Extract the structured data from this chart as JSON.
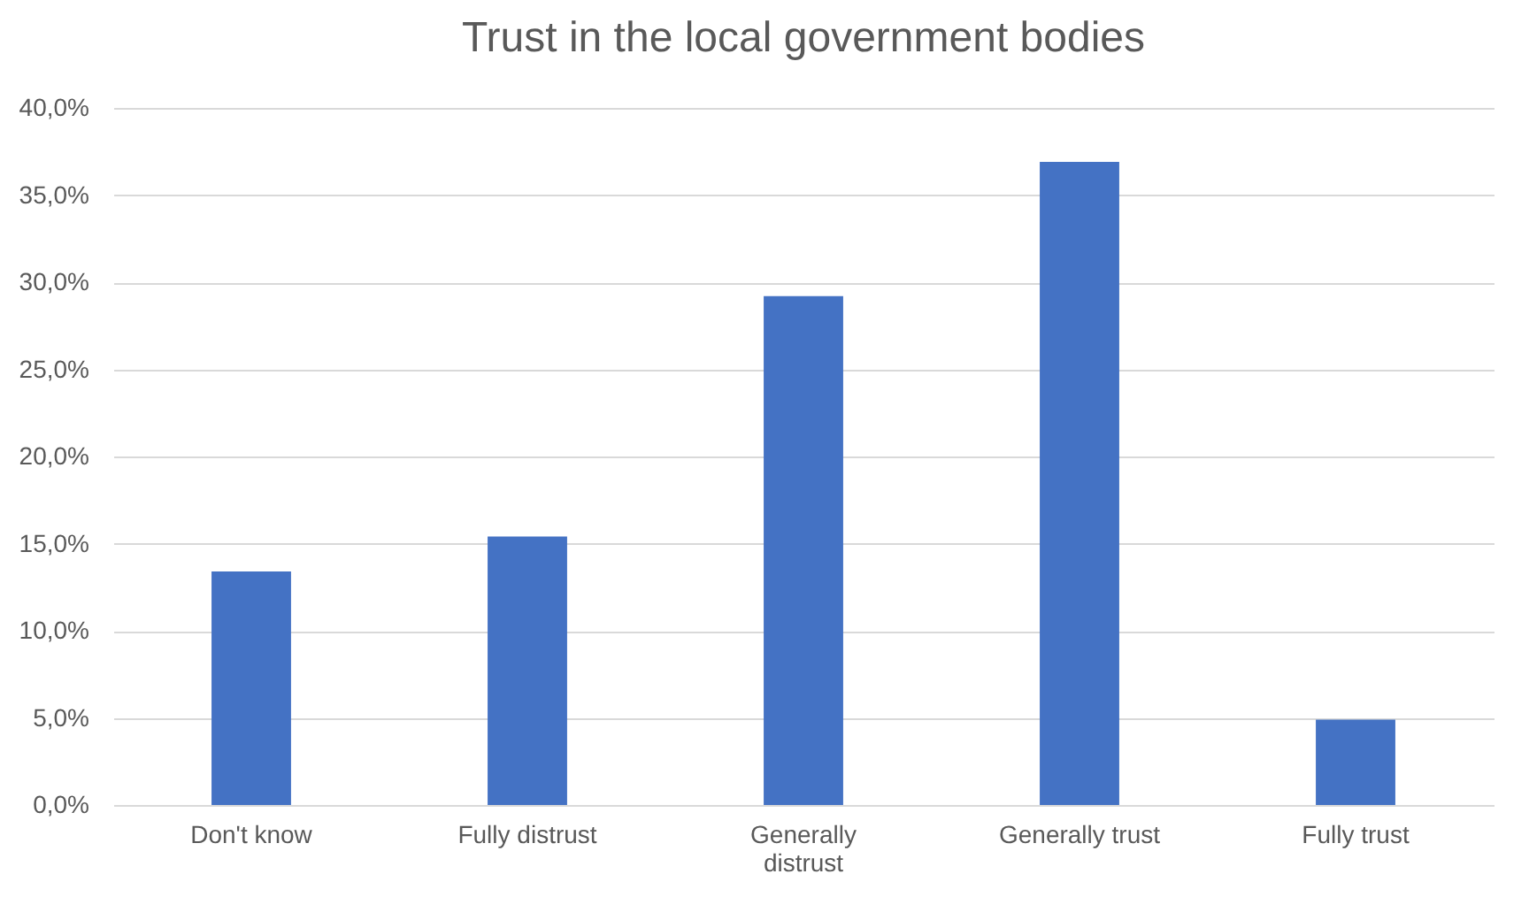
{
  "chart_data": {
    "type": "bar",
    "title": "Trust in the local government bodies",
    "categories": [
      "Don't know",
      "Fully distrust",
      "Generally distrust",
      "Generally trust",
      "Fully trust"
    ],
    "values": [
      13.4,
      15.4,
      29.2,
      36.9,
      4.9
    ],
    "color": "#4472c4",
    "ylim": [
      0,
      40
    ],
    "yticks": [
      {
        "value": 0,
        "label": "0,0%"
      },
      {
        "value": 5,
        "label": "5,0%"
      },
      {
        "value": 10,
        "label": "10,0%"
      },
      {
        "value": 15,
        "label": "15,0%"
      },
      {
        "value": 20,
        "label": "20,0%"
      },
      {
        "value": 25,
        "label": "25,0%"
      },
      {
        "value": 30,
        "label": "30,0%"
      },
      {
        "value": 35,
        "label": "35,0%"
      },
      {
        "value": 40,
        "label": "40,0%"
      }
    ],
    "grid": "y"
  }
}
